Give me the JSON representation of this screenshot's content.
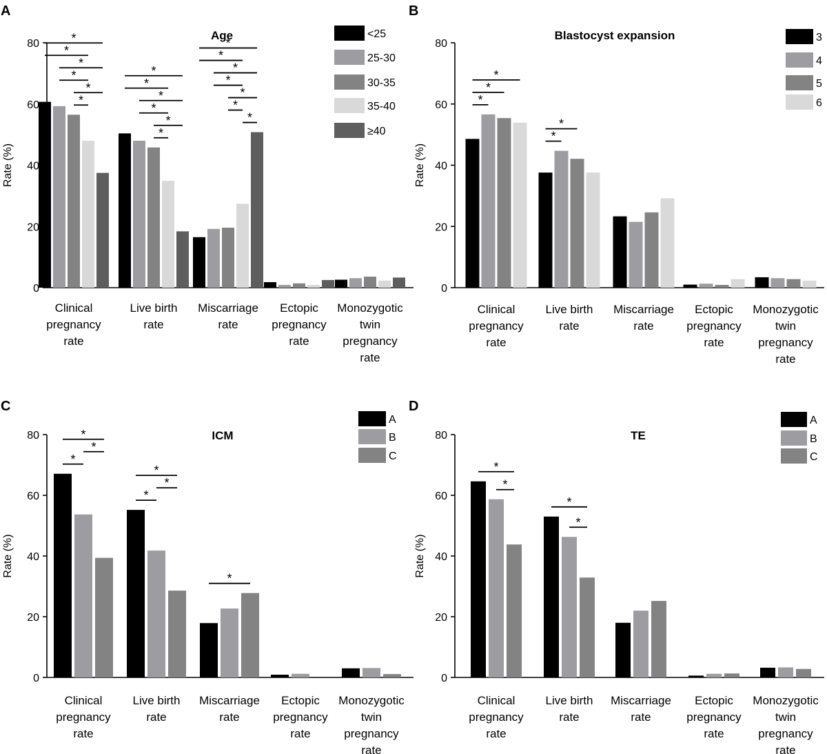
{
  "figure": {
    "category_labels": [
      [
        "Clinical",
        "pregnancy",
        "rate"
      ],
      [
        "Live birth",
        "rate"
      ],
      [
        "Miscarriage",
        "rate"
      ],
      [
        "Ectopic",
        "pregnancy",
        "rate"
      ],
      [
        "Monozygotic",
        "twin",
        "pregnancy",
        "rate"
      ]
    ],
    "y_axis_label": "Rate (%)",
    "significance_marker": "*"
  },
  "chart_data": [
    {
      "panel": "A",
      "type": "bar",
      "title": "Age",
      "xlabel": "",
      "ylabel": "Rate (%)",
      "ylim": [
        0,
        80
      ],
      "yticks": [
        0,
        20,
        40,
        60,
        80
      ],
      "categories": [
        "Clinical pregnancy rate",
        "Live birth rate",
        "Miscarriage rate",
        "Ectopic pregnancy rate",
        "Monozygotic twin pregnancy rate"
      ],
      "series": [
        {
          "name": "<25",
          "color": "#000000",
          "values": [
            60.7,
            50.4,
            16.5,
            1.8,
            2.6
          ]
        },
        {
          "name": "25-30",
          "color": "#9d9da1",
          "values": [
            59.3,
            48.0,
            19.2,
            0.9,
            3.1
          ]
        },
        {
          "name": "30-35",
          "color": "#838383",
          "values": [
            56.5,
            45.8,
            19.6,
            1.4,
            3.6
          ]
        },
        {
          "name": "35-40",
          "color": "#d9d9d9",
          "values": [
            48.0,
            34.9,
            27.4,
            0.9,
            2.3
          ]
        },
        {
          "name": "≥40",
          "color": "#5e5e5e",
          "values": [
            37.5,
            18.4,
            50.8,
            2.5,
            3.3
          ]
        }
      ],
      "significance": [
        [
          0,
          0,
          4
        ],
        [
          0,
          1,
          4
        ],
        [
          0,
          2,
          4
        ],
        [
          0,
          0,
          3
        ],
        [
          0,
          1,
          3
        ],
        [
          0,
          2,
          3
        ],
        [
          1,
          0,
          4
        ],
        [
          1,
          1,
          4
        ],
        [
          1,
          2,
          4
        ],
        [
          1,
          0,
          3
        ],
        [
          1,
          1,
          3
        ],
        [
          1,
          2,
          3
        ],
        [
          2,
          0,
          4
        ],
        [
          2,
          1,
          4
        ],
        [
          2,
          2,
          4
        ],
        [
          2,
          3,
          4
        ],
        [
          2,
          0,
          3
        ],
        [
          2,
          1,
          3
        ],
        [
          2,
          2,
          3
        ]
      ]
    },
    {
      "panel": "B",
      "type": "bar",
      "title": "Blastocyst expansion",
      "xlabel": "",
      "ylabel": "Rate (%)",
      "ylim": [
        0,
        80
      ],
      "yticks": [
        0,
        20,
        40,
        60,
        80
      ],
      "categories": [
        "Clinical pregnancy rate",
        "Live birth rate",
        "Miscarriage rate",
        "Ectopic pregnancy rate",
        "Monozygotic twin pregnancy rate"
      ],
      "series": [
        {
          "name": "3",
          "color": "#000000",
          "values": [
            48.6,
            37.6,
            23.3,
            1.0,
            3.4
          ]
        },
        {
          "name": "4",
          "color": "#9d9da1",
          "values": [
            56.6,
            44.7,
            21.5,
            1.3,
            3.1
          ]
        },
        {
          "name": "5",
          "color": "#838383",
          "values": [
            55.4,
            42.1,
            24.6,
            0.9,
            2.8
          ]
        },
        {
          "name": "6",
          "color": "#d9d9d9",
          "values": [
            53.9,
            37.6,
            29.2,
            2.8,
            2.3
          ]
        }
      ],
      "significance": [
        [
          0,
          0,
          3
        ],
        [
          0,
          0,
          2
        ],
        [
          0,
          0,
          1
        ],
        [
          1,
          0,
          2
        ],
        [
          1,
          0,
          1
        ]
      ]
    },
    {
      "panel": "C",
      "type": "bar",
      "title": "ICM",
      "xlabel": "",
      "ylabel": "Rate (%)",
      "ylim": [
        0,
        80
      ],
      "yticks": [
        0,
        20,
        40,
        60,
        80
      ],
      "categories": [
        "Clinical pregnancy rate",
        "Live birth rate",
        "Miscarriage rate",
        "Ectopic pregnancy rate",
        "Monozygotic twin pregnancy rate"
      ],
      "series": [
        {
          "name": "A",
          "color": "#000000",
          "values": [
            67.1,
            55.2,
            17.9,
            0.9,
            3.0
          ]
        },
        {
          "name": "B",
          "color": "#9d9da1",
          "values": [
            53.7,
            41.8,
            22.7,
            1.2,
            3.1
          ]
        },
        {
          "name": "C",
          "color": "#838383",
          "values": [
            39.4,
            28.6,
            27.8,
            0.0,
            1.1
          ]
        }
      ],
      "significance": [
        [
          0,
          0,
          2
        ],
        [
          0,
          0,
          1
        ],
        [
          0,
          1,
          2
        ],
        [
          1,
          0,
          2
        ],
        [
          1,
          0,
          1
        ],
        [
          1,
          1,
          2
        ],
        [
          2,
          0,
          2
        ]
      ]
    },
    {
      "panel": "D",
      "type": "bar",
      "title": "TE",
      "xlabel": "",
      "ylabel": "Rate (%)",
      "ylim": [
        0,
        80
      ],
      "yticks": [
        0,
        20,
        40,
        60,
        80
      ],
      "categories": [
        "Clinical pregnancy rate",
        "Live birth rate",
        "Miscarriage rate",
        "Ectopic pregnancy rate",
        "Monozygotic twin pregnancy rate"
      ],
      "series": [
        {
          "name": "A",
          "color": "#000000",
          "values": [
            64.6,
            53.0,
            18.0,
            0.6,
            3.2
          ]
        },
        {
          "name": "B",
          "color": "#9d9da1",
          "values": [
            58.7,
            46.3,
            22.0,
            1.2,
            3.3
          ]
        },
        {
          "name": "C",
          "color": "#838383",
          "values": [
            43.8,
            32.9,
            25.2,
            1.3,
            2.8
          ]
        }
      ],
      "significance": [
        [
          0,
          0,
          2
        ],
        [
          0,
          1,
          2
        ],
        [
          1,
          0,
          2
        ],
        [
          1,
          1,
          2
        ]
      ]
    }
  ]
}
